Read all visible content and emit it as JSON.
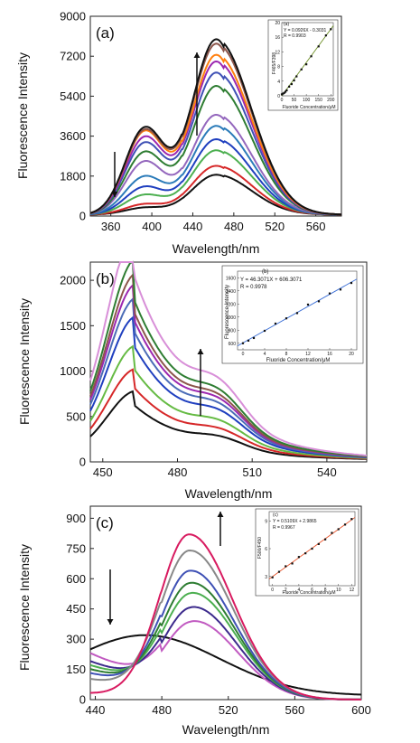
{
  "chart_data": [
    {
      "type": "line",
      "panel_label": "(a)",
      "xlabel": "Wavelength/nm",
      "ylabel": "Fluorescence Intensity",
      "xlim": [
        340,
        585
      ],
      "ylim": [
        0,
        9000
      ],
      "xticks": [
        360,
        400,
        440,
        480,
        520,
        560
      ],
      "yticks": [
        0,
        1800,
        3600,
        5400,
        7200,
        9000
      ],
      "arrows": [
        "down",
        "up"
      ],
      "series": [
        {
          "color": "#111111",
          "peak1": 300,
          "peak2": 1800
        },
        {
          "color": "#d62728",
          "peak1": 450,
          "peak2": 2200
        },
        {
          "color": "#4caf50",
          "peak1": 850,
          "peak2": 2900
        },
        {
          "color": "#1f3fbf",
          "peak1": 1200,
          "peak2": 3400
        },
        {
          "color": "#2b7bb9",
          "peak1": 1650,
          "peak2": 4000
        },
        {
          "color": "#9467bd",
          "peak1": 2300,
          "peak2": 4500
        },
        {
          "color": "#2e7d32",
          "peak1": 2700,
          "peak2": 5800
        },
        {
          "color": "#3f51b5",
          "peak1": 3100,
          "peak2": 6400
        },
        {
          "color": "#9c27b0",
          "peak1": 3350,
          "peak2": 6900
        },
        {
          "color": "#ff7f0e",
          "peak1": 3600,
          "peak2": 7200
        },
        {
          "color": "#8c564b",
          "peak1": 3650,
          "peak2": 7700
        },
        {
          "color": "#111111",
          "peak1": 3750,
          "peak2": 7900
        }
      ],
      "inset": {
        "label": "(a)",
        "equation": "Y = 0.0926X - 0.3031",
        "r": "R = 0.9903",
        "ylabel": "F465/F398",
        "xlabel": "Fluoride Concentration/μM",
        "xlim": [
          0,
          210
        ],
        "ylim": [
          0,
          20
        ],
        "xticks": [
          0,
          50,
          100,
          150,
          200
        ],
        "yticks": [
          0,
          4,
          8,
          12,
          16,
          20
        ],
        "fit_color": "#6b8e23",
        "slope": 0.0926,
        "intercept": -0.3031,
        "x": [
          0,
          5,
          10,
          15,
          20,
          30,
          40,
          50,
          60,
          80,
          100,
          120,
          150,
          180,
          200
        ],
        "y": [
          0.4,
          0.6,
          0.8,
          1.1,
          1.5,
          2.5,
          3.2,
          4.2,
          5.3,
          7.2,
          8.6,
          10.8,
          13.5,
          16.5,
          18.2
        ]
      }
    },
    {
      "type": "line",
      "panel_label": "(b)",
      "xlabel": "Wavelength/nm",
      "ylabel": "Fluorescence Intensity",
      "xlim": [
        445,
        556
      ],
      "ylim": [
        0,
        2200
      ],
      "xticks": [
        450,
        480,
        510,
        540
      ],
      "yticks": [
        0,
        500,
        1000,
        1500,
        2000
      ],
      "arrows": [
        "up"
      ],
      "series": [
        {
          "color": "#111111",
          "peak": 600
        },
        {
          "color": "#d62728",
          "peak": 790
        },
        {
          "color": "#66bb44",
          "peak": 990
        },
        {
          "color": "#1f3fbf",
          "peak": 1240
        },
        {
          "color": "#4b6cb7",
          "peak": 1400
        },
        {
          "color": "#9c27b0",
          "peak": 1520
        },
        {
          "color": "#8c564b",
          "peak": 1610
        },
        {
          "color": "#2e7d32",
          "peak": 1740
        },
        {
          "color": "#d88fd8",
          "peak": 2000
        }
      ],
      "inset": {
        "label": "(b)",
        "equation": "Y = 46.3071X + 606.3071",
        "r": "R = 0.9978",
        "ylabel": "Fluorescence Intensity",
        "xlabel": "Fluoride Concentration/μM",
        "xlim": [
          -1,
          21
        ],
        "ylim": [
          500,
          1700
        ],
        "xticks": [
          0,
          4,
          8,
          12,
          16,
          20
        ],
        "yticks": [
          600,
          800,
          1000,
          1200,
          1400,
          1600
        ],
        "fit_color": "#3b6fd6",
        "slope": 46.3071,
        "intercept": 606.3071,
        "x": [
          0,
          1,
          2,
          4,
          6,
          8,
          10,
          12,
          14,
          16,
          18,
          20
        ],
        "y": [
          600,
          640,
          680,
          790,
          900,
          980,
          1060,
          1190,
          1240,
          1360,
          1420,
          1520
        ]
      }
    },
    {
      "type": "line",
      "panel_label": "(c)",
      "xlabel": "Wavelength/nm",
      "ylabel": "Fluorescence Intensity",
      "xlim": [
        437,
        600
      ],
      "ylim": [
        0,
        960
      ],
      "xticks": [
        440,
        480,
        520,
        560,
        600
      ],
      "yticks": [
        0,
        150,
        300,
        450,
        600,
        750,
        900
      ],
      "arrows": [
        "down",
        "up"
      ],
      "series": [
        {
          "color": "#111111",
          "left": 300,
          "peak": 325
        },
        {
          "color": "#c15ac1",
          "left": 230,
          "peak": 390
        },
        {
          "color": "#3c2a8c",
          "left": 190,
          "peak": 460
        },
        {
          "color": "#4caf50",
          "left": 170,
          "peak": 530
        },
        {
          "color": "#2e7d32",
          "left": 150,
          "peak": 580
        },
        {
          "color": "#3f51b5",
          "left": 130,
          "peak": 640
        },
        {
          "color": "#888888",
          "left": 100,
          "peak": 740
        },
        {
          "color": "#d81b60",
          "left": 30,
          "peak": 820
        }
      ],
      "inset": {
        "label": "(c)",
        "equation": "Y = 0.5109X + 2.9865",
        "r": "R = 0.9967",
        "ylabel": "F500/F450",
        "xlabel": "Fluoride Concentration/μM",
        "xlim": [
          -0.5,
          12.5
        ],
        "ylim": [
          2,
          10
        ],
        "xticks": [
          0,
          2,
          4,
          6,
          8,
          10,
          12
        ],
        "yticks": [
          3,
          6,
          9
        ],
        "fit_color": "#e8542b",
        "slope": 0.5109,
        "intercept": 2.9865,
        "x": [
          0,
          1,
          2,
          3,
          4,
          5,
          6,
          7,
          8,
          9,
          10,
          11,
          12
        ],
        "y": [
          2.9,
          3.5,
          4.1,
          4.4,
          5.1,
          5.5,
          6.0,
          6.5,
          7.0,
          7.7,
          8.1,
          8.6,
          9.2
        ]
      }
    }
  ]
}
